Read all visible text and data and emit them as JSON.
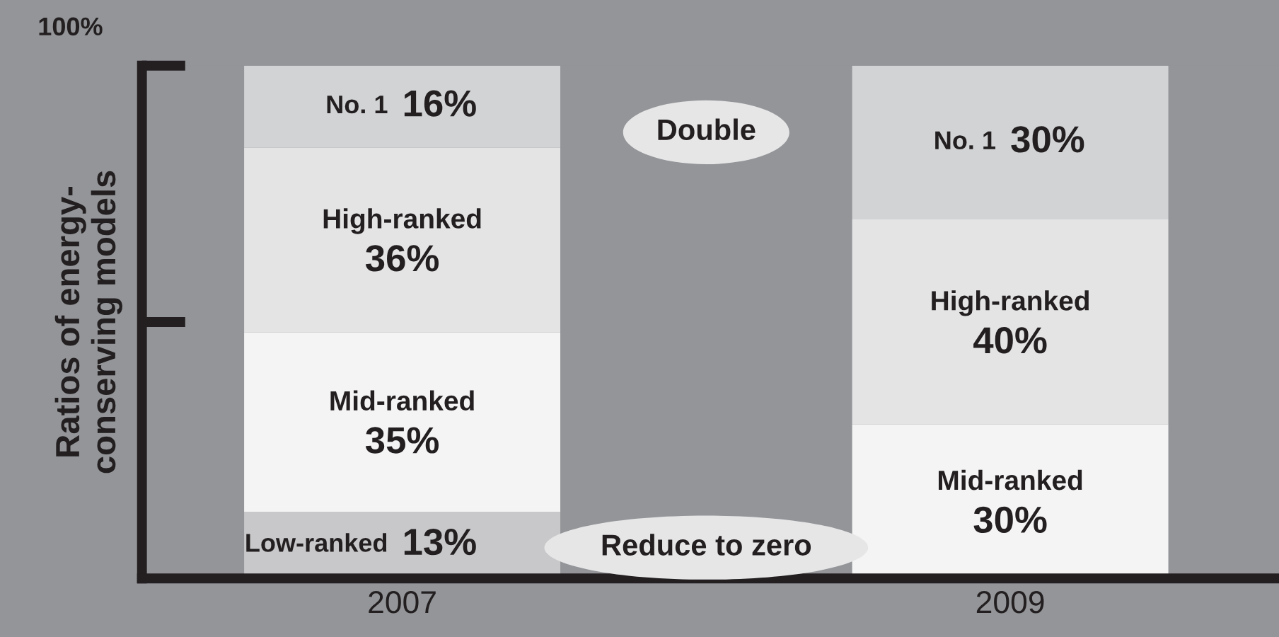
{
  "chart_data": {
    "type": "bar",
    "stacked": true,
    "ylabel": "Ratios of energy-\nconserving models",
    "categories": [
      "2007",
      "2009"
    ],
    "series": [
      {
        "name": "Low-ranked",
        "color": "#c8c8ca",
        "values": [
          13,
          0
        ],
        "value_labels": [
          "13%",
          null
        ]
      },
      {
        "name": "Mid-ranked",
        "color": "#f4f4f4",
        "values": [
          35,
          30
        ],
        "value_labels": [
          "35%",
          "30%"
        ]
      },
      {
        "name": "High-ranked",
        "color": "#e4e4e5",
        "values": [
          36,
          40
        ],
        "value_labels": [
          "36%",
          "40%"
        ]
      },
      {
        "name": "No. 1",
        "color": "#d2d3d5",
        "values": [
          16,
          30
        ],
        "value_labels": [
          "16%",
          "30%"
        ]
      }
    ],
    "ylim": [
      0,
      100
    ],
    "annotations": [
      "100%",
      "Double",
      "Reduce to zero"
    ],
    "grid": false,
    "legend": false
  }
}
